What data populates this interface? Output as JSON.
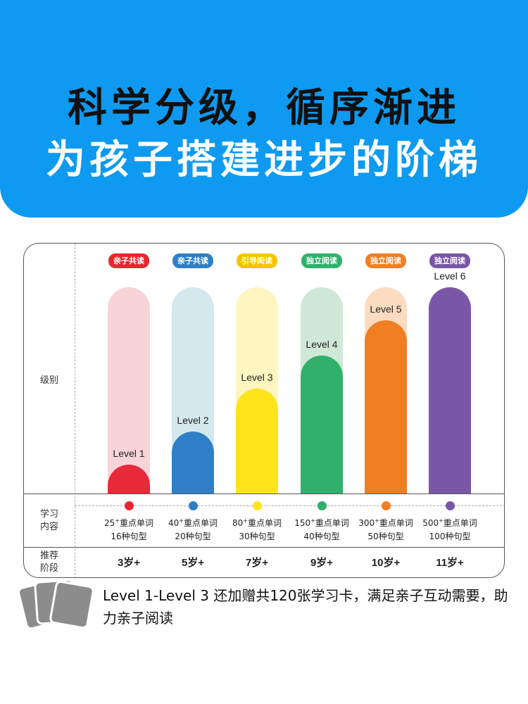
{
  "header": {
    "line1": "科学分级，循序渐进",
    "line2": "为孩子搭建进步的阶梯",
    "background_color": "#0e9af0"
  },
  "table": {
    "row_labels": {
      "level": "级别",
      "content": "学习\n内容",
      "stage": "推荐\n阶段"
    },
    "levels": [
      {
        "tag": "亲子共读",
        "tag_color": "#e6282e",
        "level": "Level 1",
        "track_color": "#f8d4d6",
        "fill_color": "#e8293a",
        "fill": 0.14,
        "dot_color": "#e6282e",
        "words": "25",
        "words_label": "重点单词",
        "patterns": "16种句型",
        "age": "3岁+"
      },
      {
        "tag": "亲子共读",
        "tag_color": "#2f7fc6",
        "level": "Level 2",
        "track_color": "#d4e8ee",
        "fill_color": "#2f7fc6",
        "fill": 0.3,
        "dot_color": "#2f7fc6",
        "words": "40",
        "words_label": "重点单词",
        "patterns": "20种句型",
        "age": "5岁+"
      },
      {
        "tag": "引导阅读",
        "tag_color": "#f5c400",
        "level": "Level 3",
        "track_color": "#fdf6c0",
        "fill_color": "#ffe41c",
        "fill": 0.51,
        "dot_color": "#ffe41c",
        "words": "80",
        "words_label": "重点单词",
        "patterns": "30种句型",
        "age": "7岁+"
      },
      {
        "tag": "独立阅读",
        "tag_color": "#2fb36a",
        "level": "Level 4",
        "track_color": "#cfe9d6",
        "fill_color": "#30b06a",
        "fill": 0.67,
        "dot_color": "#30b06a",
        "words": "150",
        "words_label": "重点单词",
        "patterns": "40种句型",
        "age": "9岁+"
      },
      {
        "tag": "独立阅读",
        "tag_color": "#f07f24",
        "level": "Level 5",
        "track_color": "#fbdcc0",
        "fill_color": "#f07f24",
        "fill": 0.84,
        "dot_color": "#f07f24",
        "words": "300",
        "words_label": "重点单词",
        "patterns": "50种句型",
        "age": "10岁+"
      },
      {
        "tag": "独立阅读",
        "tag_color": "#7a57a6",
        "level": "Level 6",
        "track_color": "#e0d4ec",
        "fill_color": "#7a57a6",
        "fill": 1.0,
        "dot_color": "#7a57a6",
        "words": "500",
        "words_label": "重点单词",
        "patterns": "100种句型",
        "age": "11岁+"
      }
    ]
  },
  "note": {
    "text": "Level 1-Level 3 还加赠共120张学习卡，满足亲子互动需要，助力亲子阅读",
    "card_color": "#8c8c8c"
  }
}
